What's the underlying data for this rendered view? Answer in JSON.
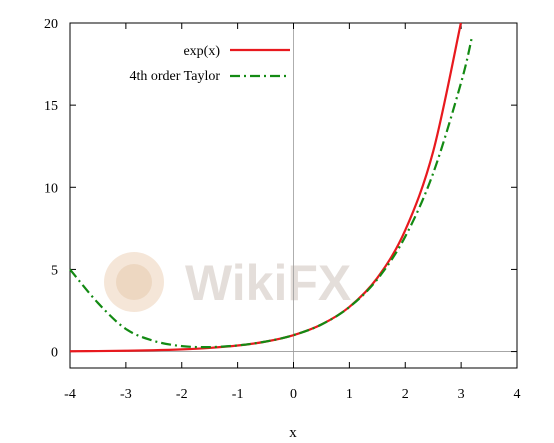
{
  "chart_data": {
    "type": "line",
    "xlabel": "x",
    "ylabel": "",
    "xlim": [
      -4,
      4
    ],
    "ylim": [
      -1,
      20
    ],
    "xticks": [
      "-4",
      "-3",
      "-2",
      "-1",
      "0",
      "1",
      "2",
      "3",
      "4"
    ],
    "yticks": [
      "0",
      "5",
      "10",
      "15",
      "20"
    ],
    "grid": false,
    "legend_position": "top-center",
    "series": [
      {
        "name": "exp(x)",
        "color": "#e8191e",
        "style": "solid",
        "x": [
          -4,
          -3.5,
          -3,
          -2.5,
          -2,
          -1.5,
          -1,
          -0.5,
          0,
          0.5,
          1,
          1.5,
          2,
          2.5,
          2.9957
        ],
        "values": [
          0.0183,
          0.0302,
          0.0498,
          0.0821,
          0.1353,
          0.2231,
          0.3679,
          0.6065,
          1.0,
          1.6487,
          2.7183,
          4.4817,
          7.3891,
          12.1825,
          20.0
        ]
      },
      {
        "name": "4th order Taylor",
        "color": "#138a13",
        "style": "dash-dot",
        "x": [
          -4,
          -3.5,
          -3,
          -2.5,
          -2,
          -1.5,
          -1,
          -0.5,
          0,
          0.5,
          1,
          1.5,
          2,
          2.5,
          3,
          3.2
        ],
        "values": [
          5.0,
          2.96,
          1.375,
          0.648,
          0.333,
          0.273,
          0.375,
          0.6068,
          1.0,
          1.6484,
          2.7083,
          4.398,
          7.0,
          10.8568,
          16.375,
          19.244
        ]
      }
    ],
    "watermark": "WikiFX"
  }
}
